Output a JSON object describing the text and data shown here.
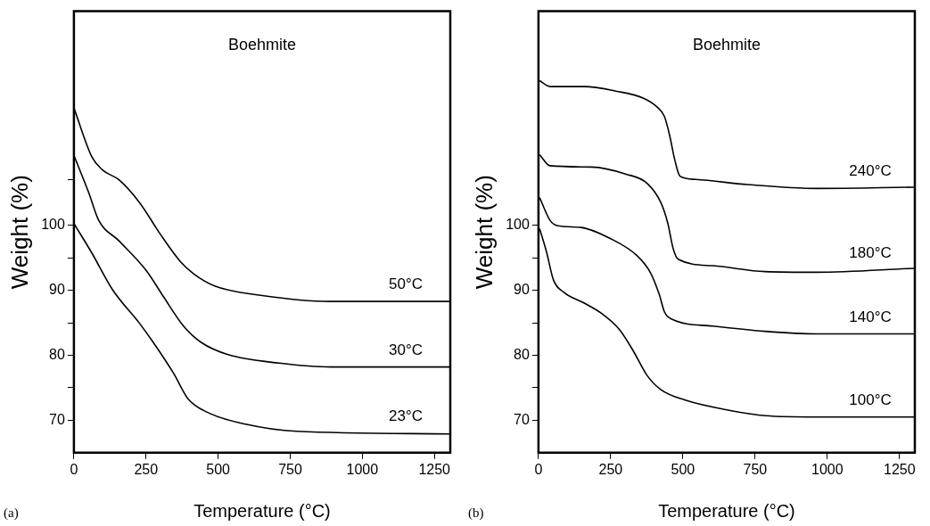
{
  "chart_data": [
    {
      "type": "line",
      "title": "Boehmite",
      "xlabel": "Temperature (°C)",
      "ylabel": "Weight (%)",
      "annotations": [
        "(a)"
      ],
      "xlim": [
        0,
        1305
      ],
      "xticks": [
        0,
        250,
        500,
        750,
        1000,
        1250
      ],
      "ylim": [
        65,
        133
      ],
      "yticks": [
        70,
        {
          "value": 75,
          "label": null
        },
        80,
        {
          "value": 85,
          "label": null
        },
        90,
        {
          "value": 95,
          "label": null
        },
        100,
        {
          "value": 107,
          "label": null
        }
      ],
      "grid": false,
      "legend": false,
      "marker": "none",
      "line_style": "solid",
      "series": [
        {
          "name": "50°C",
          "color": "#000000",
          "x": [
            0,
            63,
            98,
            157,
            228,
            299,
            370,
            417,
            488,
            653,
            890,
            1303
          ],
          "values": [
            118.1,
            110.5,
            108.6,
            107.0,
            103.5,
            98.7,
            94.4,
            92.5,
            90.7,
            89.2,
            88.3,
            88.3
          ]
        },
        {
          "name": "30°C",
          "color": "#000000",
          "x": [
            0,
            51,
            86,
            157,
            252,
            311,
            382,
            441,
            535,
            712,
            890,
            1303
          ],
          "values": [
            110.8,
            105.1,
            100.8,
            97.6,
            93.0,
            89.0,
            84.4,
            82.0,
            80.1,
            78.8,
            78.2,
            78.2
          ]
        },
        {
          "name": "23°C",
          "color": "#000000",
          "x": [
            0,
            63,
            134,
            228,
            275,
            346,
            394,
            464,
            595,
            772,
            1303
          ],
          "values": [
            100.3,
            95.7,
            90.1,
            84.9,
            82.0,
            77.2,
            73.4,
            71.2,
            69.4,
            68.3,
            67.9
          ]
        }
      ]
    },
    {
      "type": "line",
      "title": "Boehmite",
      "xlabel": "Temperature (°C)",
      "ylabel": "Weight (%)",
      "annotations": [
        "(b)"
      ],
      "xlim": [
        0,
        1303
      ],
      "xticks": [
        0,
        250,
        500,
        750,
        1000,
        1250
      ],
      "ylim": [
        65,
        133
      ],
      "yticks": [
        70,
        {
          "value": 75,
          "label": null
        },
        80,
        {
          "value": 85,
          "label": null
        },
        90,
        {
          "value": 95,
          "label": null
        },
        100
      ],
      "grid": false,
      "legend": false,
      "marker": "none",
      "line_style": "solid",
      "series": [
        {
          "name": "240°C",
          "color": "#000000",
          "x": [
            4,
            40,
            160,
            268,
            364,
            412,
            436,
            454,
            472,
            490,
            544,
            724,
            964,
            1300
          ],
          "values": [
            122.3,
            121.4,
            121.4,
            120.7,
            119.6,
            118.2,
            116.8,
            113.9,
            110.1,
            107.6,
            107.1,
            106.3,
            105.7,
            105.9
          ]
        },
        {
          "name": "180°C",
          "color": "#000000",
          "x": [
            4,
            40,
            184,
            304,
            376,
            424,
            448,
            466,
            484,
            604,
            784,
            964,
            1300
          ],
          "values": [
            110.9,
            109.2,
            109.0,
            107.9,
            106.5,
            103.5,
            100.3,
            96.5,
            94.8,
            93.8,
            92.9,
            92.8,
            93.4
          ]
        },
        {
          "name": "140°C",
          "color": "#000000",
          "x": [
            4,
            40,
            64,
            148,
            244,
            340,
            388,
            418,
            436,
            460,
            604,
            784,
            964,
            1300
          ],
          "values": [
            104.3,
            100.8,
            100.0,
            99.7,
            98.1,
            95.4,
            92.7,
            89.4,
            86.7,
            85.6,
            84.5,
            83.7,
            83.3,
            83.3
          ]
        },
        {
          "name": "100°C",
          "color": "#000000",
          "x": [
            4,
            28,
            52,
            88,
            160,
            220,
            280,
            328,
            376,
            424,
            508,
            664,
            784,
            964,
            1300
          ],
          "values": [
            99.5,
            95.9,
            91.6,
            89.7,
            88.0,
            86.4,
            84.0,
            80.7,
            76.9,
            74.7,
            73.1,
            71.5,
            70.7,
            70.5,
            70.5
          ]
        }
      ]
    }
  ]
}
